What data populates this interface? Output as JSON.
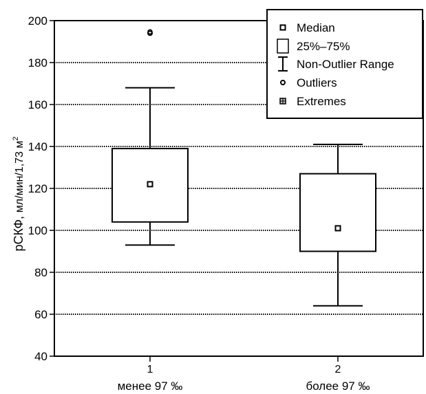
{
  "chart_data": {
    "type": "boxplot",
    "ylabel": "рСКФ,",
    "ylabel_units": "мл/мин/1,73 м",
    "ylabel_superscript": "2",
    "ylim": [
      40,
      200
    ],
    "yticks": [
      40,
      60,
      80,
      100,
      120,
      140,
      160,
      180,
      200
    ],
    "grid": true,
    "legend_position": "top-right",
    "categories": [
      {
        "tick": "1",
        "label": "менее 97 ‰"
      },
      {
        "tick": "2",
        "label": "более 97 ‰"
      }
    ],
    "boxes": [
      {
        "median": 122,
        "q1": 104,
        "q3": 139,
        "whisker_low": 93,
        "whisker_high": 168,
        "outliers": [
          194
        ]
      },
      {
        "median": 101,
        "q1": 90,
        "q3": 127,
        "whisker_low": 64,
        "whisker_high": 141,
        "outliers": []
      }
    ],
    "legend": [
      {
        "symbol": "median",
        "label": "Median"
      },
      {
        "symbol": "box",
        "label": "25%–75%"
      },
      {
        "symbol": "whisker",
        "label": "Non-Outlier Range"
      },
      {
        "symbol": "outlier",
        "label": "Outliers"
      },
      {
        "symbol": "extreme",
        "label": "Extremes"
      }
    ]
  }
}
